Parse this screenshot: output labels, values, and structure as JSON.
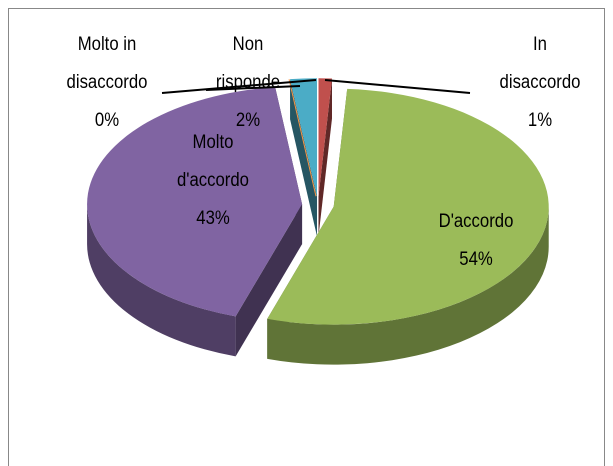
{
  "chart_data": {
    "type": "pie",
    "categories": [
      "In disaccordo",
      "D'accordo",
      "Molto d'accordo",
      "Molto in disaccordo",
      "Non risponde"
    ],
    "values": [
      1,
      54,
      43,
      0,
      2
    ],
    "value_labels": [
      "1%",
      "54%",
      "43%",
      "0%",
      "2%"
    ],
    "colors": [
      "#c0504d",
      "#9bbb59",
      "#8064a2",
      "#f79646",
      "#4bacc6"
    ]
  }
}
